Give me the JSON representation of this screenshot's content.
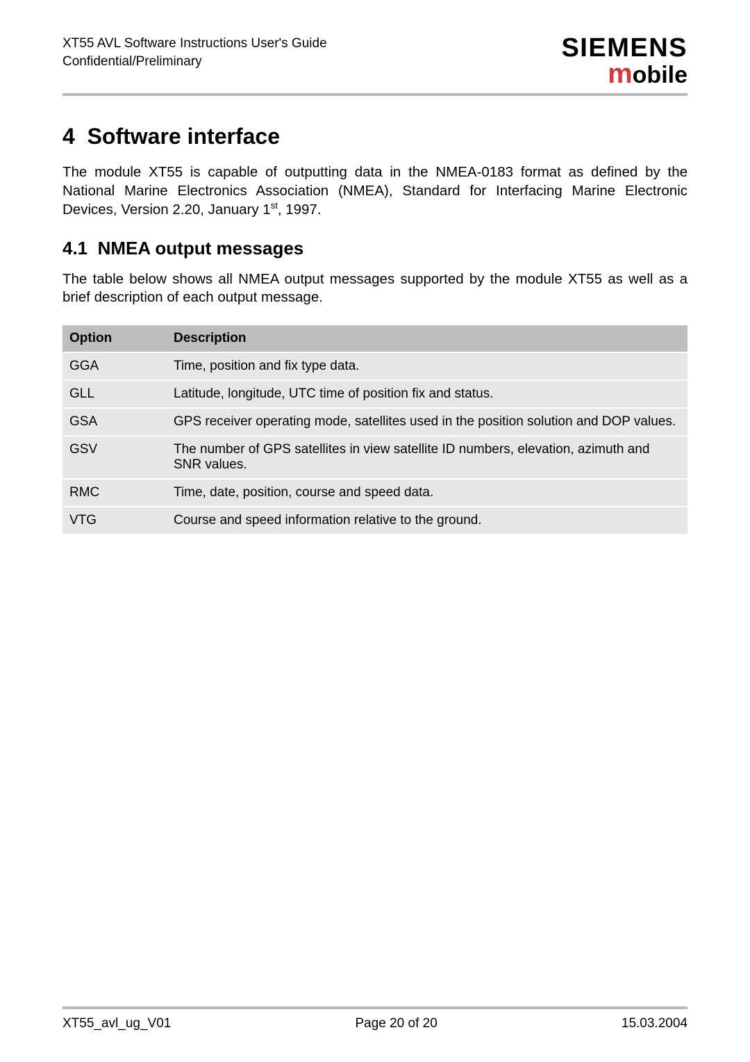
{
  "header": {
    "line1": "XT55 AVL Software Instructions User's Guide",
    "line2": "Confidential/Preliminary",
    "logo_top": "SIEMENS",
    "logo_bottom_m": "m",
    "logo_bottom_rest": "obile"
  },
  "section": {
    "number": "4",
    "title": "Software interface",
    "para": "The module XT55 is capable of outputting data in the NMEA-0183 format as defined by the National Marine Electronics Association (NMEA), Standard for Interfacing Marine Electronic Devices, Version 2.20, January 1",
    "para_super": "st",
    "para_tail": ", 1997."
  },
  "subsection": {
    "number": "4.1",
    "title": "NMEA output messages",
    "para": "The table below shows all NMEA output messages supported by the module XT55 as well as a brief description of each output message."
  },
  "table": {
    "headers": {
      "option": "Option",
      "description": "Description"
    },
    "rows": [
      {
        "option": "GGA",
        "description": "Time, position and fix type data."
      },
      {
        "option": "GLL",
        "description": "Latitude, longitude, UTC time of position fix and status."
      },
      {
        "option": "GSA",
        "description": "GPS receiver operating mode, satellites used in the position solution and DOP values."
      },
      {
        "option": "GSV",
        "description": "The number of GPS satellites in view satellite ID numbers, elevation, azimuth and SNR values."
      },
      {
        "option": "RMC",
        "description": "Time, date, position, course and speed data."
      },
      {
        "option": "VTG",
        "description": "Course and speed information relative to the ground."
      }
    ]
  },
  "footer": {
    "left": "XT55_avl_ug_V01",
    "center": "Page 20 of 20",
    "right": "15.03.2004"
  },
  "colors": {
    "hr": "#b8b8b8",
    "th_bg": "#bebebe",
    "td_bg": "#e6e6e6",
    "logo_m": "#d43a3a",
    "text": "#000000",
    "bg": "#ffffff"
  }
}
